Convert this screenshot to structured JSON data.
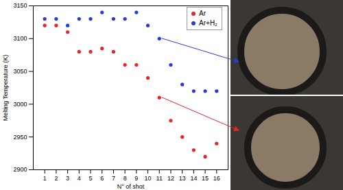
{
  "chart_data": {
    "type": "scatter",
    "xlabel": "N° of shot",
    "ylabel": "Melting Temperature (K)",
    "x": [
      1,
      2,
      3,
      4,
      5,
      6,
      7,
      8,
      9,
      10,
      11,
      12,
      13,
      14,
      15,
      16
    ],
    "series": [
      {
        "name": "Ar",
        "color": "#e5262b",
        "marker": "circle",
        "values": [
          3120,
          3120,
          3110,
          3080,
          3080,
          3085,
          3080,
          3060,
          3060,
          3040,
          3010,
          2975,
          2950,
          2930,
          2920,
          2940
        ]
      },
      {
        "name": "Ar+H₂",
        "color": "#2b3bd1",
        "marker": "circle",
        "values": [
          3130,
          3130,
          3120,
          3130,
          3130,
          3140,
          3130,
          3130,
          3140,
          3120,
          3100,
          3060,
          3030,
          3020,
          3020,
          3020
        ]
      }
    ],
    "xlim": [
      0,
      17
    ],
    "xticks": [
      1,
      2,
      3,
      4,
      5,
      6,
      7,
      8,
      9,
      10,
      11,
      12,
      13,
      14,
      15,
      16
    ],
    "ylim": [
      2900,
      3150
    ],
    "yticks": [
      2900,
      2950,
      3000,
      3050,
      3100,
      3150
    ],
    "legend": "top-right",
    "grid": false
  }
}
